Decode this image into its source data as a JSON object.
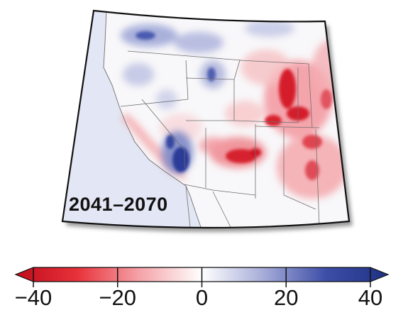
{
  "map": {
    "period_label": "2041–2070",
    "colors": {
      "ocean": "#e3e6f4",
      "land_neutral": "#f8f7f9",
      "border": "#6f6f6f",
      "frame": "#111111",
      "strong_red": "#cc0f22",
      "strong_blue": "#283c9a"
    }
  },
  "colorbar": {
    "min": -40,
    "max": 40,
    "ticks": [
      {
        "value": -40,
        "label": "−40"
      },
      {
        "value": -20,
        "label": "−20"
      },
      {
        "value": 0,
        "label": "0"
      },
      {
        "value": 20,
        "label": "20"
      },
      {
        "value": 40,
        "label": "40"
      }
    ],
    "color_stops": [
      "#bf0d1c",
      "#e8323a",
      "#f5a3a8",
      "#ffffff",
      "#a6acd8",
      "#3d4ea8",
      "#1f3184"
    ],
    "extend": "both"
  }
}
